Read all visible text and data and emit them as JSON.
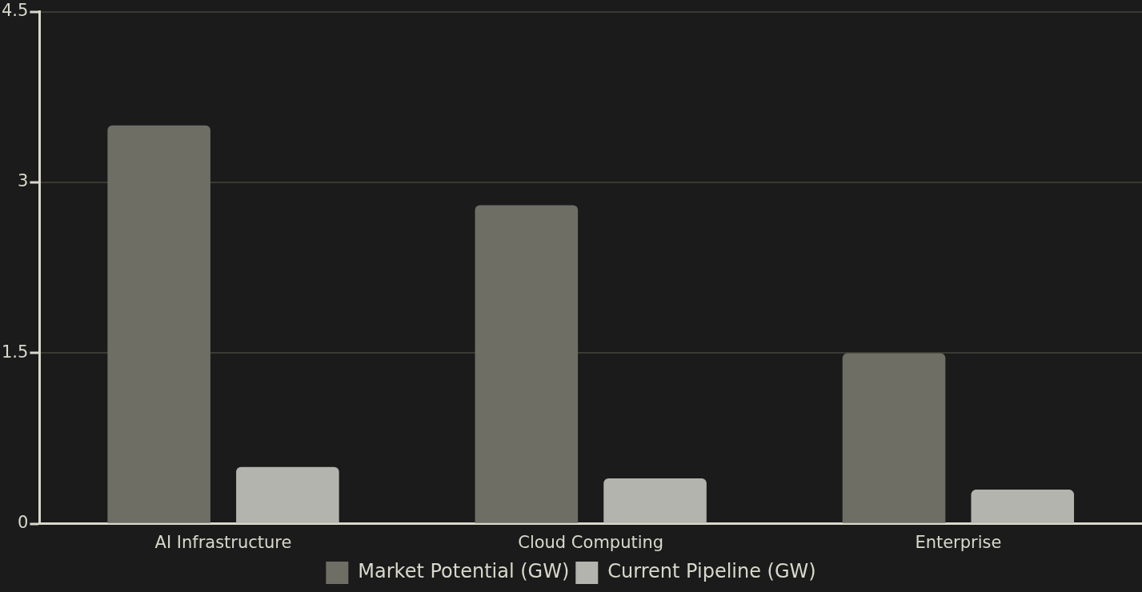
{
  "chart_data": {
    "type": "bar",
    "categories": [
      "AI Infrastructure",
      "Cloud Computing",
      "Enterprise"
    ],
    "series": [
      {
        "name": "Market Potential (GW)",
        "color": "#6e6e64",
        "values": [
          3.5,
          2.8,
          1.5
        ]
      },
      {
        "name": "Current Pipeline (GW)",
        "color": "#b4b4ae",
        "values": [
          0.5,
          0.4,
          0.3
        ]
      }
    ],
    "ylim": [
      0,
      4.5
    ],
    "yticks": [
      0,
      1.5,
      3,
      4.5
    ],
    "grid": "y",
    "legend": "bottom"
  }
}
